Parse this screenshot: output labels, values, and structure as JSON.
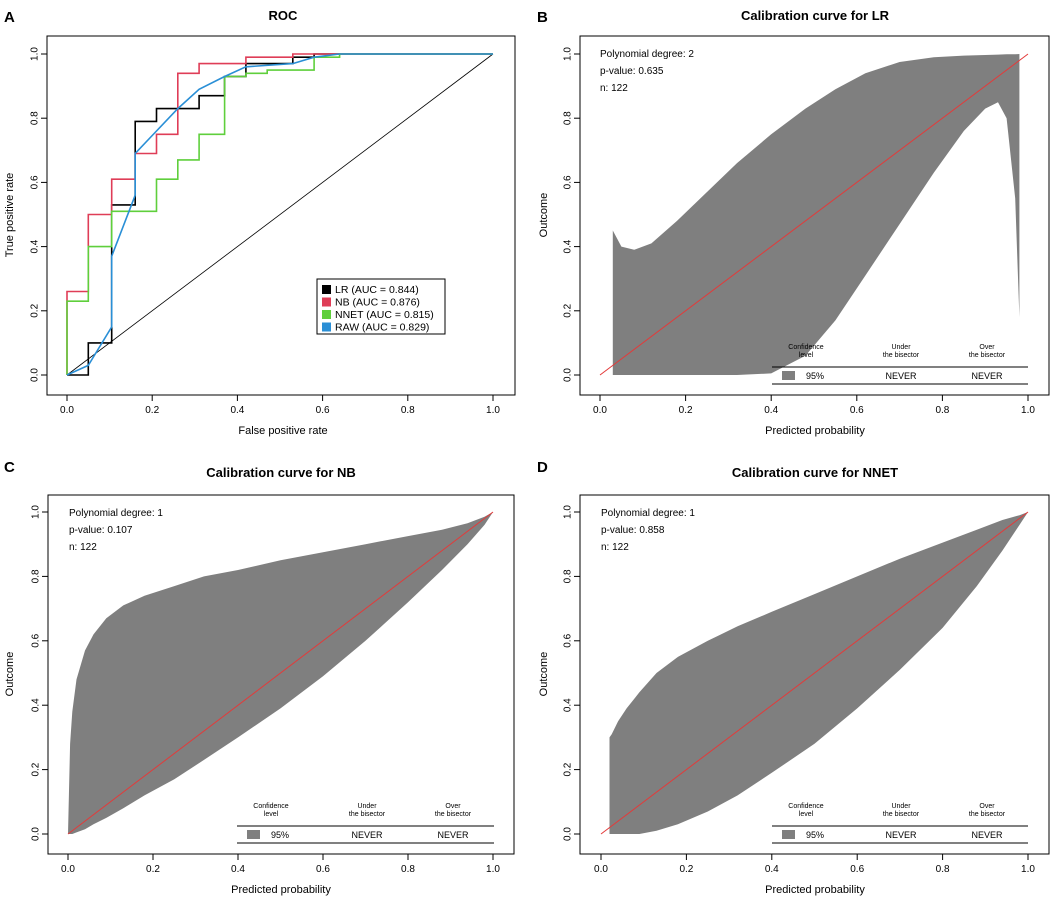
{
  "colors": {
    "LR": "#000000",
    "NB": "#df3d57",
    "NNET": "#5fcf3c",
    "RAW": "#2a8fd6",
    "band": "#7f7f7f",
    "bisector": "#e33a3a"
  },
  "chart_data": [
    {
      "panel": "A",
      "type": "line",
      "title": "ROC",
      "xlabel": "False positive rate",
      "ylabel": "True positive rate",
      "xlim": [
        0,
        1
      ],
      "ylim": [
        0,
        1
      ],
      "xticks": [
        "0.0",
        "0.2",
        "0.4",
        "0.6",
        "0.8",
        "1.0"
      ],
      "yticks": [
        "0.0",
        "0.2",
        "0.4",
        "0.6",
        "0.8",
        "1.0"
      ],
      "legend_position": "bottom-right",
      "series": [
        {
          "name": "LR",
          "legend": "LR (AUC = 0.844)",
          "step": true,
          "x": [
            0,
            0.05,
            0.05,
            0.105,
            0.105,
            0.16,
            0.16,
            0.21,
            0.21,
            0.26,
            0.26,
            0.31,
            0.31,
            0.37,
            0.37,
            0.42,
            0.42,
            0.53,
            0.53,
            0.58,
            0.58,
            1.0
          ],
          "y": [
            0,
            0,
            0.1,
            0.1,
            0.53,
            0.53,
            0.79,
            0.79,
            0.83,
            0.83,
            0.83,
            0.83,
            0.87,
            0.87,
            0.93,
            0.93,
            0.97,
            0.97,
            0.99,
            0.99,
            1.0,
            1.0
          ]
        },
        {
          "name": "NB",
          "legend": "NB (AUC = 0.876)",
          "step": true,
          "x": [
            0,
            0,
            0.05,
            0.05,
            0.105,
            0.105,
            0.16,
            0.16,
            0.21,
            0.21,
            0.26,
            0.26,
            0.31,
            0.31,
            0.37,
            0.37,
            0.42,
            0.42,
            0.53,
            0.53,
            1.0
          ],
          "y": [
            0,
            0.26,
            0.26,
            0.5,
            0.5,
            0.61,
            0.61,
            0.69,
            0.69,
            0.75,
            0.75,
            0.94,
            0.94,
            0.97,
            0.97,
            0.97,
            0.97,
            0.99,
            0.99,
            1.0,
            1.0
          ]
        },
        {
          "name": "NNET",
          "legend": "NNET (AUC = 0.815)",
          "step": true,
          "x": [
            0,
            0,
            0.05,
            0.05,
            0.105,
            0.105,
            0.16,
            0.16,
            0.21,
            0.21,
            0.26,
            0.26,
            0.31,
            0.31,
            0.37,
            0.37,
            0.42,
            0.42,
            0.47,
            0.47,
            0.58,
            0.58,
            0.64,
            0.64,
            1.0
          ],
          "y": [
            0,
            0.23,
            0.23,
            0.4,
            0.4,
            0.51,
            0.51,
            0.51,
            0.51,
            0.61,
            0.61,
            0.67,
            0.67,
            0.75,
            0.75,
            0.93,
            0.93,
            0.94,
            0.94,
            0.95,
            0.95,
            0.99,
            0.99,
            1.0,
            1.0
          ]
        },
        {
          "name": "RAW",
          "legend": "RAW (AUC = 0.829)",
          "step": false,
          "x": [
            0,
            0.05,
            0.105,
            0.105,
            0.16,
            0.16,
            0.21,
            0.26,
            0.31,
            0.37,
            0.42,
            0.53,
            0.58,
            0.64,
            1.0
          ],
          "y": [
            0,
            0.03,
            0.15,
            0.37,
            0.56,
            0.69,
            0.76,
            0.83,
            0.89,
            0.93,
            0.96,
            0.97,
            0.99,
            1.0,
            1.0
          ]
        }
      ],
      "reference_line": {
        "x": [
          0,
          1
        ],
        "y": [
          0,
          1
        ]
      }
    },
    {
      "panel": "B",
      "type": "area",
      "title": "Calibration curve for LR",
      "xlabel": "Predicted probability",
      "ylabel": "Outcome",
      "xlim": [
        0,
        1
      ],
      "ylim": [
        0,
        1
      ],
      "xticks": [
        "0.0",
        "0.2",
        "0.4",
        "0.6",
        "0.8",
        "1.0"
      ],
      "yticks": [
        "0.0",
        "0.2",
        "0.4",
        "0.6",
        "0.8",
        "1.0"
      ],
      "info": [
        "Polynomial degree: 2",
        "p-value: 0.635",
        "n: 122"
      ],
      "band": {
        "x": [
          0.03,
          0.05,
          0.08,
          0.12,
          0.18,
          0.25,
          0.32,
          0.4,
          0.48,
          0.55,
          0.62,
          0.7,
          0.78,
          0.85,
          0.9,
          0.93,
          0.95,
          0.97,
          0.98
        ],
        "upper": [
          0.45,
          0.4,
          0.39,
          0.41,
          0.48,
          0.57,
          0.66,
          0.75,
          0.83,
          0.89,
          0.94,
          0.975,
          0.99,
          0.995,
          0.997,
          0.998,
          0.999,
          0.999,
          1.0
        ],
        "lower": [
          0.0,
          0.0,
          0.0,
          0.0,
          0.0,
          0.0,
          0.0,
          0.005,
          0.06,
          0.17,
          0.31,
          0.47,
          0.63,
          0.76,
          0.83,
          0.85,
          0.8,
          0.55,
          0.18
        ]
      },
      "bisector": true,
      "table": {
        "headers": [
          "Confidence\nlevel",
          "Under\nthe bisector",
          "Over\nthe bisector"
        ],
        "row": [
          "95%",
          "NEVER",
          "NEVER"
        ]
      }
    },
    {
      "panel": "C",
      "type": "area",
      "title": "Calibration curve for NB",
      "xlabel": "Predicted probability",
      "ylabel": "Outcome",
      "xlim": [
        0,
        1
      ],
      "ylim": [
        0,
        1
      ],
      "xticks": [
        "0.0",
        "0.2",
        "0.4",
        "0.6",
        "0.8",
        "1.0"
      ],
      "yticks": [
        "0.0",
        "0.2",
        "0.4",
        "0.6",
        "0.8",
        "1.0"
      ],
      "info": [
        "Polynomial degree: 1",
        "p-value: 0.107",
        "n: 122"
      ],
      "band": {
        "x": [
          0.0,
          0.005,
          0.01,
          0.02,
          0.04,
          0.06,
          0.09,
          0.13,
          0.18,
          0.25,
          0.32,
          0.4,
          0.5,
          0.6,
          0.7,
          0.8,
          0.88,
          0.94,
          0.98,
          1.0
        ],
        "upper": [
          0.0,
          0.28,
          0.38,
          0.48,
          0.57,
          0.62,
          0.67,
          0.71,
          0.74,
          0.77,
          0.8,
          0.82,
          0.85,
          0.875,
          0.9,
          0.925,
          0.945,
          0.965,
          0.985,
          1.0
        ],
        "lower": [
          0.0,
          0.0,
          0.0,
          0.005,
          0.015,
          0.03,
          0.05,
          0.08,
          0.12,
          0.17,
          0.23,
          0.3,
          0.39,
          0.49,
          0.6,
          0.72,
          0.82,
          0.9,
          0.96,
          1.0
        ]
      },
      "bisector": true,
      "table": {
        "headers": [
          "Confidence\nlevel",
          "Under\nthe bisector",
          "Over\nthe bisector"
        ],
        "row": [
          "95%",
          "NEVER",
          "NEVER"
        ]
      }
    },
    {
      "panel": "D",
      "type": "area",
      "title": "Calibration curve for NNET",
      "xlabel": "Predicted probability",
      "ylabel": "Outcome",
      "xlim": [
        0,
        1
      ],
      "ylim": [
        0,
        1
      ],
      "xticks": [
        "0.0",
        "0.2",
        "0.4",
        "0.6",
        "0.8",
        "1.0"
      ],
      "yticks": [
        "0.0",
        "0.2",
        "0.4",
        "0.6",
        "0.8",
        "1.0"
      ],
      "info": [
        "Polynomial degree: 1",
        "p-value: 0.858",
        "n: 122"
      ],
      "band": {
        "x": [
          0.02,
          0.025,
          0.04,
          0.06,
          0.09,
          0.13,
          0.18,
          0.25,
          0.32,
          0.4,
          0.5,
          0.6,
          0.7,
          0.8,
          0.88,
          0.94,
          0.98,
          1.0
        ],
        "upper": [
          0.3,
          0.31,
          0.35,
          0.39,
          0.44,
          0.5,
          0.55,
          0.6,
          0.645,
          0.69,
          0.745,
          0.8,
          0.855,
          0.905,
          0.945,
          0.975,
          0.99,
          1.0
        ],
        "lower": [
          0.0,
          0.0,
          0.0,
          0.0,
          0.0,
          0.01,
          0.03,
          0.07,
          0.12,
          0.19,
          0.28,
          0.39,
          0.51,
          0.64,
          0.77,
          0.88,
          0.96,
          1.0
        ]
      },
      "bisector": true,
      "table": {
        "headers": [
          "Confidence\nlevel",
          "Under\nthe bisector",
          "Over\nthe bisector"
        ],
        "row": [
          "95%",
          "NEVER",
          "NEVER"
        ]
      }
    }
  ]
}
